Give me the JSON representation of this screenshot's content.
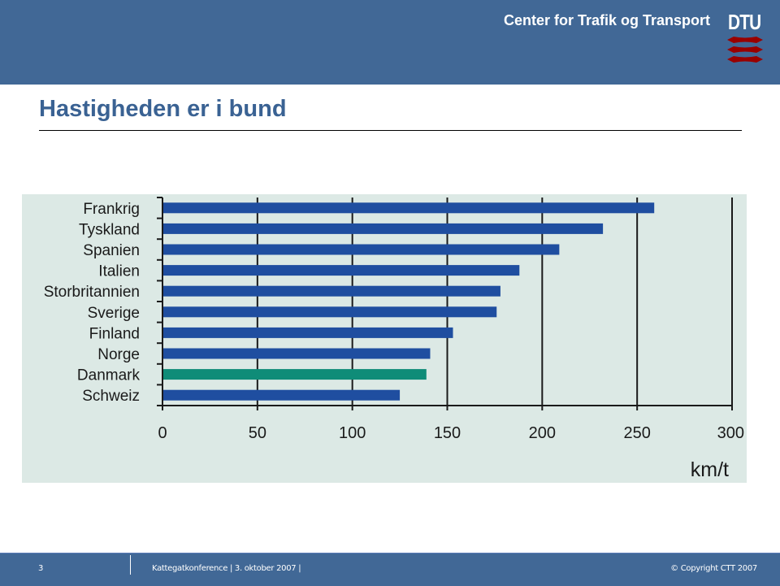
{
  "header": {
    "org_name": "Center for Trafik og Transport",
    "logo_text": "DTU",
    "logo_icon": "dtu-wave-logo-icon",
    "logo_color": "#990000",
    "background_color": "#416896"
  },
  "slide": {
    "title": "Hastigheden er i bund"
  },
  "chart_data": {
    "type": "bar",
    "orientation": "horizontal",
    "title": "",
    "categories": [
      "Frankrig",
      "Tyskland",
      "Spanien",
      "Italien",
      "Storbritannien",
      "Sverige",
      "Finland",
      "Norge",
      "Danmark",
      "Schweiz"
    ],
    "values": [
      259,
      232,
      209,
      188,
      178,
      176,
      153,
      141,
      139,
      125
    ],
    "highlight": "Danmark",
    "bar_color": "#1f4ea0",
    "highlight_color": "#0f8c78",
    "background_color": "#dce9e5",
    "xlabel": "km/t",
    "ylabel": "",
    "xlim": [
      0,
      300
    ],
    "xticks": [
      "0",
      "50",
      "100",
      "150",
      "200",
      "250",
      "300"
    ],
    "grid": true,
    "legend": "none"
  },
  "footer": {
    "page_number": "3",
    "event": "Kattegatkonference  |  3. oktober 2007  |",
    "copyright": "© Copyright CTT 2007"
  }
}
